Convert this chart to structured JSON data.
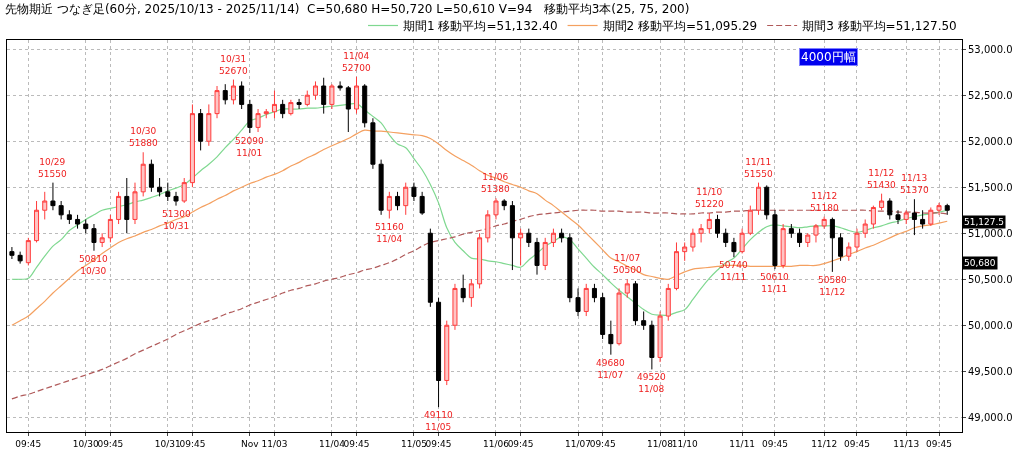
{
  "chart_data": {
    "type": "candlestick",
    "title": "先物期近 つなぎ足(60分, 2025/10/13 - 2025/11/14)  C=50,680 H=50,720 L=50,610 V=94   移動平均3本(25, 75, 200)",
    "categories": [
      null,
      null,
      "09:45",
      null,
      null,
      null,
      null,
      null,
      null,
      "10/30",
      null,
      null,
      "09:45",
      null,
      null,
      null,
      null,
      null,
      null,
      "10/31",
      null,
      null,
      "09:45",
      null,
      null,
      null,
      null,
      null,
      null,
      "Nov",
      null,
      null,
      "11/03",
      null,
      null,
      null,
      null,
      null,
      null,
      "11/04",
      null,
      null,
      "09:45",
      null,
      null,
      null,
      null,
      null,
      null,
      "11/05",
      null,
      null,
      "09:45",
      null,
      null,
      null,
      null,
      null,
      null,
      "11/06",
      null,
      null,
      "09:45",
      null,
      null,
      null,
      null,
      null,
      null,
      "11/07",
      null,
      null,
      "09:45",
      null,
      null,
      null,
      null,
      null,
      null,
      "11/08",
      null,
      null,
      "11/10",
      null,
      null,
      null,
      null,
      null,
      null,
      "11/11",
      null,
      null,
      null,
      "09:45",
      null,
      null,
      null,
      null,
      null,
      "11/12",
      null,
      null,
      null,
      "09:45",
      null,
      null,
      null,
      null,
      null,
      "11/13",
      null,
      null,
      null,
      "09:45",
      null
    ],
    "ohlc": [
      [
        50800,
        50850,
        50720,
        50760
      ],
      [
        50760,
        50800,
        50670,
        50700
      ],
      [
        50680,
        50950,
        50650,
        50920
      ],
      [
        50920,
        51350,
        50900,
        51250
      ],
      [
        51250,
        51450,
        51150,
        51350
      ],
      [
        51350,
        51550,
        51250,
        51300
      ],
      [
        51300,
        51350,
        51150,
        51200
      ],
      [
        51200,
        51250,
        51100,
        51150
      ],
      [
        51150,
        51200,
        51050,
        51100
      ],
      [
        51100,
        51150,
        51000,
        51050
      ],
      [
        51050,
        51100,
        50810,
        50900
      ],
      [
        50900,
        51000,
        50850,
        50950
      ],
      [
        50950,
        51200,
        50900,
        51150
      ],
      [
        51150,
        51450,
        51100,
        51400
      ],
      [
        51400,
        51600,
        51000,
        51150
      ],
      [
        51150,
        51550,
        51100,
        51450
      ],
      [
        51450,
        51880,
        51400,
        51750
      ],
      [
        51750,
        51800,
        51450,
        51500
      ],
      [
        51500,
        51600,
        51400,
        51450
      ],
      [
        51450,
        51550,
        51350,
        51400
      ],
      [
        51400,
        51450,
        51300,
        51350
      ],
      [
        51350,
        51600,
        51330,
        51550
      ],
      [
        51550,
        52400,
        51500,
        52300
      ],
      [
        52300,
        52350,
        51900,
        52000
      ],
      [
        52000,
        52400,
        51950,
        52300
      ],
      [
        52300,
        52600,
        52250,
        52550
      ],
      [
        52550,
        52620,
        52400,
        52450
      ],
      [
        52450,
        52670,
        52400,
        52600
      ],
      [
        52600,
        52650,
        52350,
        52400
      ],
      [
        52400,
        52450,
        52090,
        52150
      ],
      [
        52150,
        52350,
        52100,
        52300
      ],
      [
        52300,
        52350,
        52250,
        52320
      ],
      [
        52320,
        52550,
        52250,
        52400
      ],
      [
        52400,
        52450,
        52250,
        52300
      ],
      [
        52300,
        52450,
        52280,
        52420
      ],
      [
        52420,
        52460,
        52350,
        52400
      ],
      [
        52400,
        52550,
        52380,
        52500
      ],
      [
        52500,
        52650,
        52450,
        52600
      ],
      [
        52600,
        52690,
        52300,
        52400
      ],
      [
        52400,
        52620,
        52350,
        52600
      ],
      [
        52600,
        52650,
        52550,
        52580
      ],
      [
        52580,
        52600,
        52100,
        52350
      ],
      [
        52350,
        52700,
        52300,
        52600
      ],
      [
        52600,
        52620,
        52150,
        52200
      ],
      [
        52200,
        52250,
        51700,
        51750
      ],
      [
        51750,
        51800,
        51200,
        51250
      ],
      [
        51250,
        51450,
        51160,
        51400
      ],
      [
        51400,
        51450,
        51250,
        51300
      ],
      [
        51300,
        51550,
        51200,
        51500
      ],
      [
        51500,
        51550,
        51350,
        51400
      ],
      [
        51400,
        51450,
        51200,
        51220
      ],
      [
        51000,
        51050,
        50200,
        50250
      ],
      [
        50250,
        50300,
        49110,
        49400
      ],
      [
        49400,
        50050,
        49350,
        50000
      ],
      [
        50000,
        50450,
        49950,
        50400
      ],
      [
        50400,
        50550,
        50250,
        50300
      ],
      [
        50300,
        50500,
        50200,
        50450
      ],
      [
        50450,
        51000,
        50400,
        50950
      ],
      [
        50950,
        51250,
        50900,
        51200
      ],
      [
        51200,
        51380,
        51150,
        51350
      ],
      [
        51350,
        51370,
        51250,
        51300
      ],
      [
        51300,
        51350,
        50600,
        50950
      ],
      [
        50950,
        51050,
        50650,
        51000
      ],
      [
        51000,
        51050,
        50850,
        50900
      ],
      [
        50900,
        50950,
        50550,
        50650
      ],
      [
        50650,
        50950,
        50600,
        50900
      ],
      [
        50900,
        51050,
        50850,
        51000
      ],
      [
        51000,
        51050,
        50900,
        50950
      ],
      [
        50950,
        51000,
        50250,
        50300
      ],
      [
        50300,
        50400,
        50100,
        50150
      ],
      [
        50150,
        50450,
        50100,
        50400
      ],
      [
        50400,
        50450,
        50250,
        50300
      ],
      [
        50300,
        50350,
        49850,
        49900
      ],
      [
        49900,
        50050,
        49680,
        49800
      ],
      [
        49800,
        50400,
        49780,
        50350
      ],
      [
        50350,
        50500,
        50300,
        50450
      ],
      [
        50450,
        50480,
        50000,
        50050
      ],
      [
        50050,
        50150,
        49950,
        50000
      ],
      [
        50000,
        50050,
        49520,
        49650
      ],
      [
        49650,
        50150,
        49600,
        50100
      ],
      [
        50100,
        50450,
        50050,
        50400
      ],
      [
        50400,
        50900,
        50380,
        50800
      ],
      [
        50800,
        50900,
        50700,
        50850
      ],
      [
        50850,
        51050,
        50800,
        51000
      ],
      [
        51000,
        51100,
        50900,
        51050
      ],
      [
        51050,
        51220,
        51000,
        51150
      ],
      [
        51150,
        51200,
        50950,
        51000
      ],
      [
        51000,
        51050,
        50850,
        50900
      ],
      [
        50900,
        50950,
        50740,
        50800
      ],
      [
        50800,
        51050,
        50780,
        51000
      ],
      [
        51000,
        51300,
        50980,
        51250
      ],
      [
        51250,
        51550,
        51200,
        51500
      ],
      [
        51500,
        51520,
        51150,
        51200
      ],
      [
        51200,
        51250,
        50610,
        50650
      ],
      [
        50650,
        51100,
        50620,
        51050
      ],
      [
        51050,
        51100,
        50950,
        51000
      ],
      [
        51000,
        51050,
        50850,
        50900
      ],
      [
        50900,
        51000,
        50850,
        50980
      ],
      [
        50980,
        51100,
        50900,
        51080
      ],
      [
        51080,
        51180,
        51050,
        51150
      ],
      [
        51150,
        51170,
        50580,
        50950
      ],
      [
        50950,
        51000,
        50700,
        50750
      ],
      [
        50750,
        50900,
        50700,
        50850
      ],
      [
        50850,
        51050,
        50800,
        51000
      ],
      [
        51000,
        51150,
        50950,
        51100
      ],
      [
        51100,
        51300,
        51050,
        51280
      ],
      [
        51280,
        51430,
        51250,
        51350
      ],
      [
        51350,
        51380,
        51150,
        51200
      ],
      [
        51200,
        51250,
        51100,
        51150
      ],
      [
        51150,
        51250,
        51100,
        51220
      ],
      [
        51220,
        51370,
        50980,
        51150
      ],
      [
        51150,
        51250,
        51050,
        51100
      ],
      [
        51100,
        51280,
        51080,
        51250
      ],
      [
        51250,
        51330,
        51200,
        51300
      ],
      [
        51300,
        51320,
        51200,
        51250
      ]
    ],
    "series": [
      {
        "name": "期間1 移動平均=51,132.40",
        "color": "#7fd890",
        "type": "line",
        "line_style": "solid",
        "values": [
          50500,
          50500,
          50510,
          50630,
          50750,
          50860,
          50930,
          51030,
          51090,
          51150,
          51200,
          51250,
          51270,
          51290,
          51310,
          51340,
          51360,
          51390,
          51420,
          51460,
          51490,
          51530,
          51600,
          51680,
          51750,
          51830,
          51930,
          52020,
          52120,
          52220,
          52250,
          52290,
          52320,
          52350,
          52350,
          52350,
          52360,
          52360,
          52370,
          52380,
          52390,
          52400,
          52410,
          52340,
          52270,
          52200,
          52070,
          51970,
          51930,
          51810,
          51690,
          51530,
          51330,
          51060,
          50900,
          50810,
          50730,
          50720,
          50700,
          50690,
          50670,
          50650,
          50630,
          50710,
          50780,
          50860,
          50910,
          50960,
          50930,
          50830,
          50730,
          50630,
          50550,
          50460,
          50380,
          50310,
          50240,
          50170,
          50120,
          50110,
          50110,
          50140,
          50170,
          50280,
          50400,
          50510,
          50600,
          50680,
          50730,
          50830,
          50930,
          51010,
          51070,
          51090,
          51080,
          51070,
          51060,
          51070,
          51080,
          51080,
          51080,
          51060,
          51030,
          51010,
          51030,
          51060,
          51080,
          51110,
          51130,
          51160,
          51180,
          51200,
          51210,
          51230,
          51250
        ]
      },
      {
        "name": "期間2 移動平均=51,095.29",
        "color": "#f4a060",
        "type": "line",
        "line_style": "solid",
        "values": [
          50000,
          50050,
          50100,
          50180,
          50260,
          50350,
          50430,
          50510,
          50590,
          50650,
          50710,
          50780,
          50840,
          50900,
          50940,
          50970,
          51010,
          51040,
          51080,
          51110,
          51150,
          51180,
          51230,
          51280,
          51320,
          51370,
          51410,
          51460,
          51500,
          51540,
          51570,
          51610,
          51640,
          51680,
          51730,
          51770,
          51820,
          51860,
          51910,
          51950,
          51990,
          52030,
          52080,
          52120,
          52110,
          52110,
          52100,
          52090,
          52080,
          52070,
          52060,
          52030,
          51970,
          51900,
          51840,
          51790,
          51740,
          51680,
          51630,
          51600,
          51560,
          51530,
          51500,
          51460,
          51430,
          51360,
          51300,
          51230,
          51160,
          51090,
          51000,
          50910,
          50820,
          50730,
          50690,
          50640,
          50600,
          50550,
          50530,
          50510,
          50500,
          50540,
          50580,
          50610,
          50620,
          50630,
          50640,
          50650,
          50650,
          50650,
          50640,
          50640,
          50640,
          50640,
          50640,
          50640,
          50650,
          50650,
          50650,
          50670,
          50700,
          50730,
          50770,
          50800,
          50840,
          50870,
          50910,
          50950,
          50990,
          51020,
          51060,
          51080,
          51090,
          51110,
          51130
        ]
      },
      {
        "name": "期間3 移動平均=51,127.50",
        "color": "#b05a5a",
        "type": "line",
        "line_style": "dashed",
        "values": [
          49200,
          49230,
          49250,
          49280,
          49310,
          49340,
          49370,
          49400,
          49430,
          49460,
          49490,
          49520,
          49560,
          49600,
          49640,
          49690,
          49730,
          49770,
          49810,
          49850,
          49900,
          49940,
          49980,
          50020,
          50050,
          50080,
          50120,
          50150,
          50180,
          50220,
          50250,
          50280,
          50310,
          50350,
          50380,
          50400,
          50430,
          50450,
          50480,
          50500,
          50520,
          50550,
          50570,
          50600,
          50620,
          50650,
          50680,
          50720,
          50770,
          50810,
          50860,
          50900,
          50920,
          50940,
          50960,
          50990,
          51010,
          51030,
          51050,
          51080,
          51100,
          51130,
          51150,
          51180,
          51200,
          51210,
          51220,
          51230,
          51240,
          51250,
          51250,
          51250,
          51240,
          51240,
          51240,
          51230,
          51230,
          51230,
          51220,
          51220,
          51220,
          51210,
          51210,
          51210,
          51220,
          51220,
          51230,
          51230,
          51240,
          51240,
          51250,
          51250,
          51250,
          51250,
          51250,
          51250,
          51250,
          51250,
          51250,
          51250,
          51250,
          51250,
          51250,
          51250,
          51250,
          51240,
          51240,
          51240,
          51230,
          51230,
          51230,
          51220,
          51220,
          51220,
          51210
        ]
      }
    ],
    "ylim": [
      48840,
      53100
    ],
    "yticks": [
      {
        "value": 49000,
        "label": "49,000.0"
      },
      {
        "value": 49500,
        "label": "49,500.0"
      },
      {
        "value": 50000,
        "label": "50,000.0"
      },
      {
        "value": 50500,
        "label": "50,500.0"
      },
      {
        "value": 51000,
        "label": "51,000.0"
      },
      {
        "value": 51500,
        "label": "51,500.0"
      },
      {
        "value": 52000,
        "label": "52,000.0"
      },
      {
        "value": 52500,
        "label": "52,500.0"
      },
      {
        "value": 53000,
        "label": "53,000.0"
      }
    ],
    "grid": true,
    "legend": "top",
    "annotations": [
      "4000円幅",
      {
        "text": "50,680",
        "y": 50680
      },
      {
        "text": "51,127.5",
        "y": 51127.5
      },
      {
        "text": "10/29\n51550",
        "y": 51550
      },
      {
        "text": "50810\n10/30",
        "y": 50810
      },
      {
        "text": "10/30\n51880",
        "y": 51880
      },
      {
        "text": "51300\n10/31",
        "y": 51300
      },
      {
        "text": "10/31\n52670",
        "y": 52670
      },
      {
        "text": "52090\n11/01",
        "y": 52090
      },
      {
        "text": "11/04\n52700",
        "y": 52700
      },
      {
        "text": "51160\n11/04",
        "y": 51160
      },
      {
        "text": "49110\n11/05",
        "y": 49110
      },
      {
        "text": "11/06\n51380",
        "y": 51380
      },
      {
        "text": "49680\n11/07",
        "y": 49680
      },
      {
        "text": "11/07\n50500",
        "y": 50500
      },
      {
        "text": "49520\n11/08",
        "y": 49520
      },
      {
        "text": "11/10\n51220",
        "y": 51220
      },
      {
        "text": "50740\n11/11",
        "y": 50740
      },
      {
        "text": "11/11\n51550",
        "y": 51550
      },
      {
        "text": "50610\n11/11",
        "y": 50610
      },
      {
        "text": "11/12\n51180",
        "y": 51180
      },
      {
        "text": "50580\n11/12",
        "y": 50580
      },
      {
        "text": "11/12\n51430",
        "y": 51430
      },
      {
        "text": "11/13\n51370",
        "y": 51370
      }
    ]
  }
}
